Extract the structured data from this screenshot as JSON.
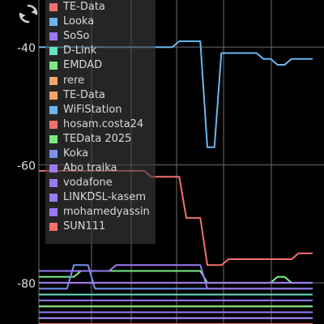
{
  "toolbar": {
    "refresh_icon": "refresh-icon"
  },
  "chart_data": {
    "type": "line",
    "x": [
      0,
      1,
      2,
      3,
      4,
      5,
      6,
      7,
      8,
      9,
      10,
      11,
      12,
      13,
      14,
      15,
      16,
      17,
      18,
      19,
      20,
      21,
      22,
      23,
      24,
      25,
      26,
      27,
      28,
      29,
      30,
      31,
      32,
      33,
      34,
      35,
      36,
      37,
      38,
      39
    ],
    "ylim": [
      -87,
      -32
    ],
    "yticks": [
      -40,
      -60,
      -80
    ],
    "ytick_labels": [
      "-40",
      "-60",
      "-80"
    ],
    "grid": true,
    "legend_position": "top-left",
    "series": [
      {
        "name": "TE-Data",
        "color": "#f47070",
        "values": [
          -86,
          -86,
          -86,
          -86,
          -86,
          -86,
          -86,
          -86,
          -86,
          -86,
          -86,
          -86,
          -86,
          -86,
          -86,
          -86,
          -86,
          -86,
          -86,
          -86,
          -86,
          -86,
          -86,
          -86,
          -86,
          -86,
          -86,
          -86,
          -86,
          -86,
          -86,
          -86,
          -86,
          -86,
          -86,
          -86,
          -86,
          -86,
          -86,
          -86
        ]
      },
      {
        "name": "Looka",
        "color": "#6ab7ef",
        "values": [
          -40,
          -40,
          -40,
          -40,
          -40,
          -40,
          -40,
          -40,
          -40,
          -40,
          -40,
          -40,
          -40,
          -40,
          -40,
          -40,
          -40,
          -40,
          -40,
          -40,
          -39,
          -39,
          -39,
          -39,
          -57,
          -57,
          -41,
          -41,
          -41,
          -41,
          -41,
          -41,
          -42,
          -42,
          -43,
          -43,
          -42,
          -42,
          -42,
          -42
        ]
      },
      {
        "name": "SoSo",
        "color": "#9a7af0",
        "values": [
          -85,
          -85,
          -85,
          -85,
          -85,
          -85,
          -85,
          -85,
          -85,
          -85,
          -85,
          -85,
          -85,
          -85,
          -85,
          -85,
          -85,
          -85,
          -85,
          -85,
          -85,
          -85,
          -85,
          -85,
          -85,
          -85,
          -85,
          -85,
          -85,
          -85,
          -85,
          -85,
          -85,
          -85,
          -85,
          -85,
          -85,
          -85,
          -85,
          -85
        ]
      },
      {
        "name": "D-Link",
        "color": "#66e0bf",
        "values": [
          -82,
          -82,
          -82,
          -82,
          -82,
          -82,
          -82,
          -82,
          -82,
          -82,
          -82,
          -82,
          -82,
          -82,
          -82,
          -82,
          -82,
          -82,
          -82,
          -82,
          -82,
          -82,
          -82,
          -82,
          -82,
          -82,
          -82,
          -82,
          -82,
          -82,
          -82,
          -82,
          -82,
          -82,
          -82,
          -82,
          -82,
          -82,
          -82,
          -82
        ]
      },
      {
        "name": "EMDAD",
        "color": "#7bea84",
        "values": [
          -79,
          -79,
          -79,
          -79,
          -79,
          -79,
          -78,
          -78,
          -78,
          -78,
          -78,
          -78,
          -78,
          -78,
          -78,
          -78,
          -78,
          -78,
          -78,
          -78,
          -78,
          -78,
          -78,
          -78,
          -80,
          -80,
          -80,
          -80,
          -80,
          -80,
          -80,
          -80,
          -80,
          -80,
          -79,
          -79,
          -80,
          -80,
          -80,
          -80
        ]
      },
      {
        "name": "rere",
        "color": "#f6a467",
        "values": [
          -84,
          -84,
          -84,
          -84,
          -84,
          -84,
          -84,
          -84,
          -84,
          -84,
          -84,
          -84,
          -84,
          -84,
          -84,
          -84,
          -84,
          -84,
          -84,
          -84,
          -84,
          -84,
          -84,
          -84,
          -84,
          -84,
          -84,
          -84,
          -84,
          -84,
          -84,
          -84,
          -84,
          -84,
          -84,
          -84,
          -84,
          -84,
          -84,
          -84
        ]
      },
      {
        "name": "TE-Data",
        "color": "#f6a467",
        "values": [
          -80,
          -80,
          -80,
          -80,
          -80,
          -80,
          -80,
          -80,
          -80,
          -80,
          -80,
          -80,
          -80,
          -80,
          -80,
          -80,
          -80,
          -80,
          -80,
          -80,
          -80,
          -80,
          -80,
          -80,
          -80,
          -80,
          -80,
          -80,
          -80,
          -80,
          -80,
          -80,
          -80,
          -80,
          -80,
          -80,
          -80,
          -80,
          -80,
          -80
        ]
      },
      {
        "name": "WiFiStation",
        "color": "#6ab7ef",
        "values": [
          -86,
          -86,
          -86,
          -86,
          -86,
          -86,
          -86,
          -86,
          -86,
          -86,
          -86,
          -86,
          -86,
          -86,
          -86,
          -86,
          -86,
          -86,
          -86,
          -86,
          -86,
          -86,
          -86,
          -86,
          -86,
          -86,
          -86,
          -86,
          -86,
          -86,
          -86,
          -86,
          -86,
          -86,
          -86,
          -86,
          -86,
          -86,
          -86,
          -86
        ]
      },
      {
        "name": "hosam.costa24",
        "color": "#f47070",
        "values": [
          -61,
          -61,
          -61,
          -61,
          -61,
          -61,
          -61,
          -61,
          -61,
          -61,
          -61,
          -61,
          -61,
          -61,
          -61,
          -61,
          -62,
          -62,
          -62,
          -62,
          -62,
          -69,
          -69,
          -69,
          -77,
          -77,
          -77,
          -76,
          -76,
          -76,
          -76,
          -76,
          -76,
          -76,
          -76,
          -76,
          -76,
          -75,
          -75,
          -75
        ]
      },
      {
        "name": "TEData 2025",
        "color": "#7bea84",
        "values": [
          -84,
          -84,
          -84,
          -84,
          -84,
          -84,
          -84,
          -84,
          -84,
          -84,
          -84,
          -84,
          -84,
          -84,
          -84,
          -84,
          -84,
          -84,
          -84,
          -84,
          -84,
          -84,
          -84,
          -84,
          -84,
          -84,
          -84,
          -84,
          -84,
          -84,
          -84,
          -84,
          -84,
          -84,
          -84,
          -84,
          -84,
          -84,
          -84,
          -84
        ]
      },
      {
        "name": "Koka",
        "color": "#7b8ff0",
        "values": [
          -81,
          -81,
          -81,
          -81,
          -81,
          -77,
          -77,
          -77,
          -81,
          -81,
          -81,
          -81,
          -81,
          -81,
          -81,
          -81,
          -81,
          -81,
          -81,
          -81,
          -81,
          -81,
          -81,
          -81,
          -81,
          -81,
          -81,
          -81,
          -81,
          -81,
          -81,
          -81,
          -81,
          -81,
          -81,
          -81,
          -81,
          -81,
          -81,
          -81
        ]
      },
      {
        "name": "Abo traika",
        "color": "#9a7af0",
        "values": [
          -83,
          -83,
          -83,
          -83,
          -83,
          -83,
          -83,
          -83,
          -83,
          -83,
          -83,
          -83,
          -83,
          -83,
          -83,
          -83,
          -83,
          -83,
          -83,
          -83,
          -83,
          -83,
          -83,
          -83,
          -83,
          -83,
          -83,
          -83,
          -83,
          -83,
          -83,
          -83,
          -83,
          -83,
          -83,
          -83,
          -83,
          -83,
          -83,
          -83
        ]
      },
      {
        "name": "vodafone",
        "color": "#9a7af0",
        "values": [
          -78,
          -78,
          -78,
          -78,
          -78,
          -78,
          -78,
          -78,
          -78,
          -78,
          -78,
          -77,
          -77,
          -77,
          -77,
          -77,
          -77,
          -77,
          -77,
          -77,
          -77,
          -77,
          -77,
          -77,
          -81,
          -81,
          -81,
          -81,
          -81,
          -81,
          -81,
          -81,
          -81,
          -81,
          -81,
          -81,
          -81,
          -81,
          -81,
          -81
        ]
      },
      {
        "name": "LINKDSL-kasem",
        "color": "#9a7af0",
        "values": [
          -86,
          -86,
          -86,
          -86,
          -86,
          -86,
          -86,
          -86,
          -86,
          -86,
          -86,
          -86,
          -86,
          -86,
          -86,
          -86,
          -86,
          -86,
          -86,
          -86,
          -86,
          -86,
          -86,
          -86,
          -86,
          -86,
          -86,
          -86,
          -86,
          -86,
          -86,
          -86,
          -86,
          -86,
          -86,
          -86,
          -86,
          -86,
          -86,
          -86
        ]
      },
      {
        "name": "mohamedyassin",
        "color": "#9a7af0",
        "values": [
          -80,
          -80,
          -80,
          -80,
          -80,
          -80,
          -80,
          -80,
          -80,
          -80,
          -80,
          -80,
          -80,
          -80,
          -80,
          -80,
          -80,
          -80,
          -80,
          -80,
          -80,
          -80,
          -80,
          -80,
          -80,
          -80,
          -80,
          -80,
          -80,
          -80,
          -80,
          -80,
          -80,
          -80,
          -80,
          -80,
          -80,
          -80,
          -80,
          -80
        ]
      },
      {
        "name": "SUN111",
        "color": "#f47070",
        "values": [
          -87,
          -87,
          -87,
          -87,
          -87,
          -87,
          -87,
          -87,
          -87,
          -87,
          -87,
          -87,
          -87,
          -87,
          -87,
          -87,
          -87,
          -87,
          -87,
          -87,
          -87,
          -87,
          -87,
          -87,
          -87,
          -87,
          -87,
          -87,
          -87,
          -87,
          -87,
          -87,
          -87,
          -87,
          -87,
          -87,
          -87,
          -87,
          -87,
          -87
        ]
      }
    ]
  }
}
